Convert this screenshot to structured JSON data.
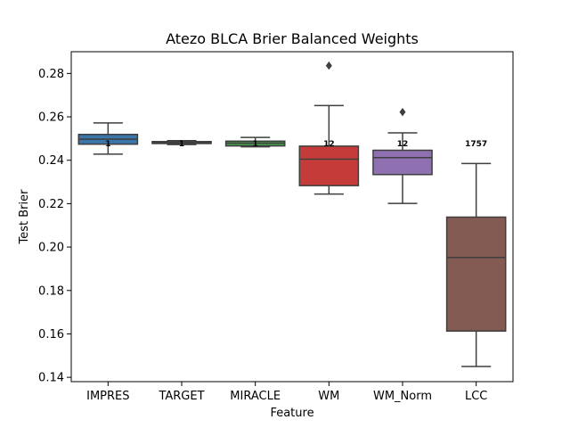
{
  "chart_data": {
    "type": "box",
    "title": "Atezo BLCA Brier Balanced Weights",
    "xlabel": "Feature",
    "ylabel": "Test Brier",
    "ylim": [
      0.138,
      0.29
    ],
    "yticks": [
      0.14,
      0.16,
      0.18,
      0.2,
      0.22,
      0.24,
      0.26,
      0.28
    ],
    "ytick_labels": [
      "0.14",
      "0.16",
      "0.18",
      "0.20",
      "0.22",
      "0.24",
      "0.26",
      "0.28"
    ],
    "grid": false,
    "legend": "none",
    "categories": [
      "IMPRES",
      "TARGET",
      "MIRACLE",
      "WM",
      "WM_Norm",
      "LCC"
    ],
    "boxes": [
      {
        "category": "IMPRES",
        "color": "#3a76a7",
        "whisker_low": 0.2428,
        "q1": 0.2474,
        "median": 0.2497,
        "q3": 0.2519,
        "whisker_high": 0.2572,
        "outliers": [],
        "annotation": "1",
        "annotation_y": 0.2465
      },
      {
        "category": "TARGET",
        "color": "#d98436",
        "whisker_low": 0.2472,
        "q1": 0.2477,
        "median": 0.2481,
        "q3": 0.2486,
        "whisker_high": 0.249,
        "outliers": [],
        "annotation": "1",
        "annotation_y": 0.2465
      },
      {
        "category": "MIRACLE",
        "color": "#44974a",
        "whisker_low": 0.2462,
        "q1": 0.2466,
        "median": 0.2479,
        "q3": 0.2488,
        "whisker_high": 0.2505,
        "outliers": [],
        "annotation": "1",
        "annotation_y": 0.2465
      },
      {
        "category": "WM",
        "color": "#c53b39",
        "whisker_low": 0.2244,
        "q1": 0.2283,
        "median": 0.2405,
        "q3": 0.2465,
        "whisker_high": 0.2652,
        "outliers": [
          0.2836
        ],
        "annotation": "12",
        "annotation_y": 0.2465
      },
      {
        "category": "WM_Norm",
        "color": "#8f70b1",
        "whisker_low": 0.2201,
        "q1": 0.2334,
        "median": 0.2412,
        "q3": 0.2446,
        "whisker_high": 0.2526,
        "outliers": [
          0.2622
        ],
        "annotation": "12",
        "annotation_y": 0.2465
      },
      {
        "category": "LCC",
        "color": "#845b53",
        "whisker_low": 0.145,
        "q1": 0.1613,
        "median": 0.1952,
        "q3": 0.2138,
        "whisker_high": 0.2385,
        "outliers": [],
        "annotation": "1757",
        "annotation_y": 0.2465
      }
    ]
  }
}
